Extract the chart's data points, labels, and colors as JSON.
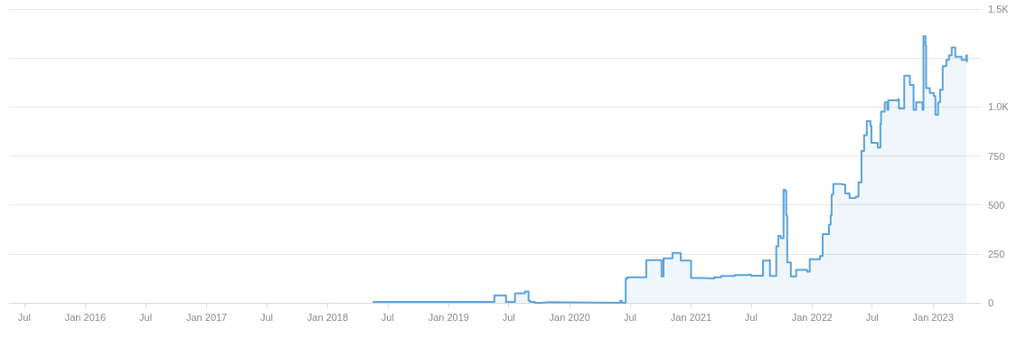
{
  "chart_data": {
    "type": "step",
    "x": [
      "2018-05-19",
      "2019-05-19",
      "2019-06-23",
      "2019-07-20",
      "2019-08-19",
      "2019-08-30",
      "2019-09-04",
      "2019-09-18",
      "2019-10-07",
      "2019-10-29",
      "2020-06-01",
      "2020-06-07",
      "2020-06-18",
      "2020-06-23",
      "2020-08-19",
      "2020-10-04",
      "2020-10-10",
      "2020-11-06",
      "2020-12-01",
      "2021-01-01",
      "2021-01-31",
      "2021-03-12",
      "2021-04-02",
      "2021-05-13",
      "2021-06-18",
      "2021-07-01",
      "2021-08-06",
      "2021-08-25",
      "2021-08-27",
      "2021-09-15",
      "2021-09-21",
      "2021-09-29",
      "2021-10-07",
      "2021-10-13",
      "2021-10-15",
      "2021-10-18",
      "2021-10-29",
      "2021-11-06",
      "2021-11-14",
      "2021-12-17",
      "2021-12-25",
      "2022-01-25",
      "2022-02-02",
      "2022-02-21",
      "2022-02-26",
      "2022-03-01",
      "2022-03-06",
      "2022-03-28",
      "2022-04-11",
      "2022-04-24",
      "2022-05-13",
      "2022-05-21",
      "2022-05-30",
      "2022-06-07",
      "2022-06-15",
      "2022-06-26",
      "2022-06-29",
      "2022-07-18",
      "2022-07-26",
      "2022-07-28",
      "2022-08-08",
      "2022-08-16",
      "2022-08-19",
      "2022-09-18",
      "2022-09-20",
      "2022-10-04",
      "2022-10-06",
      "2022-10-18",
      "2022-10-23",
      "2022-11-03",
      "2022-11-11",
      "2022-11-28",
      "2022-11-30",
      "2022-12-03",
      "2022-12-09",
      "2022-12-11",
      "2022-12-22",
      "2023-01-03",
      "2023-01-08",
      "2023-01-16",
      "2023-01-22",
      "2023-01-30",
      "2023-02-10",
      "2023-02-18",
      "2023-02-26",
      "2023-03-09",
      "2023-03-28",
      "2023-04-11",
      "2023-04-13"
    ],
    "series": [
      {
        "color": "#5ba3dd",
        "values": [
          5,
          38,
          5,
          48,
          58,
          10,
          5,
          0,
          3,
          0,
          10,
          0,
          125,
          130,
          218,
          135,
          227,
          255,
          216,
          127,
          125,
          130,
          137,
          142,
          144,
          139,
          216,
          218,
          137,
          288,
          341,
          330,
          577,
          568,
          447,
          207,
          135,
          135,
          168,
          159,
          223,
          239,
          351,
          399,
          447,
          553,
          607,
          604,
          559,
          535,
          542,
          615,
          775,
          856,
          928,
          904,
          817,
          793,
          913,
          976,
          1024,
          985,
          1034,
          1040,
          992,
          992,
          1160,
          1160,
          1112,
          985,
          1024,
          1024,
          985,
          1361,
          1313,
          1096,
          1072,
          1056,
          960,
          1024,
          1088,
          1208,
          1240,
          1264,
          1304,
          1256,
          1240,
          1264,
          1232
        ]
      }
    ],
    "xlim": [
      "2015-05-16",
      "2023-05-25"
    ],
    "xticks": [
      {
        "value": "2015-07-01",
        "label": "Jul"
      },
      {
        "value": "2016-01-01",
        "label": "Jan 2016"
      },
      {
        "value": "2016-07-01",
        "label": "Jul"
      },
      {
        "value": "2017-01-01",
        "label": "Jan 2017"
      },
      {
        "value": "2017-07-01",
        "label": "Jul"
      },
      {
        "value": "2018-01-01",
        "label": "Jan 2018"
      },
      {
        "value": "2018-07-01",
        "label": "Jul"
      },
      {
        "value": "2019-01-01",
        "label": "Jan 2019"
      },
      {
        "value": "2019-07-01",
        "label": "Jul"
      },
      {
        "value": "2020-01-01",
        "label": "Jan 2020"
      },
      {
        "value": "2020-07-01",
        "label": "Jul"
      },
      {
        "value": "2021-01-01",
        "label": "Jan 2021"
      },
      {
        "value": "2021-07-01",
        "label": "Jul"
      },
      {
        "value": "2022-01-01",
        "label": "Jan 2022"
      },
      {
        "value": "2022-07-01",
        "label": "Jul"
      },
      {
        "value": "2023-01-01",
        "label": "Jan 2023"
      }
    ],
    "ylim": [
      0,
      1500
    ],
    "yticks": [
      0,
      250,
      500,
      750,
      {
        "value": 1000,
        "label": "1.0K"
      },
      {
        "value": 1250,
        "label": null
      },
      {
        "value": 1500,
        "label": "1.5K"
      }
    ],
    "grid": "y"
  }
}
